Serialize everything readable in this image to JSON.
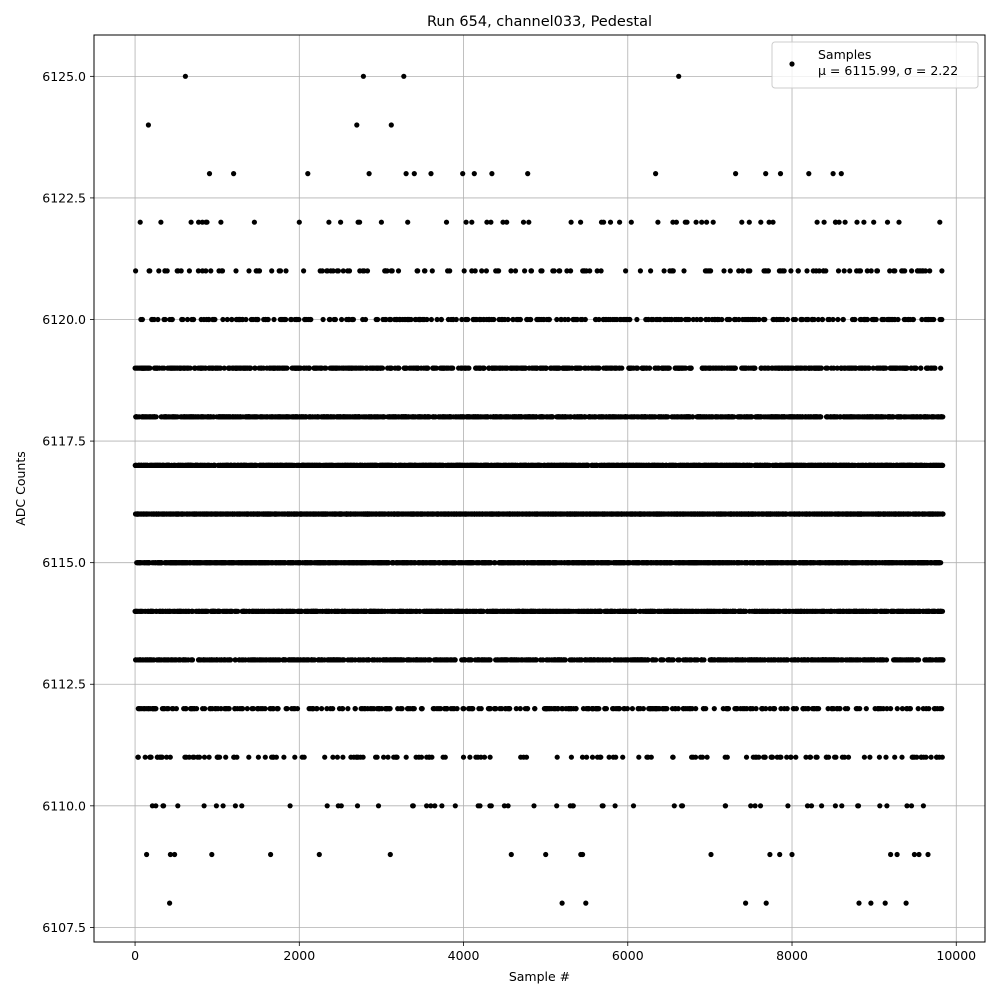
{
  "chart_data": {
    "type": "scatter",
    "title": "Run 654, channel033, Pedestal",
    "xlabel": "Sample #",
    "ylabel": "ADC Counts",
    "xlim": [
      -500,
      10350
    ],
    "ylim": [
      6107.2,
      6125.85
    ],
    "xticks": [
      0,
      2000,
      4000,
      6000,
      8000,
      10000
    ],
    "xtick_labels": [
      "0",
      "2000",
      "4000",
      "6000",
      "8000",
      "10000"
    ],
    "yticks": [
      6107.5,
      6110.0,
      6112.5,
      6115.0,
      6117.5,
      6120.0,
      6122.5,
      6125.0
    ],
    "ytick_labels": [
      "6107.5",
      "6110.0",
      "6112.5",
      "6115.0",
      "6117.5",
      "6120.0",
      "6122.5",
      "6125.0"
    ],
    "grid": true,
    "legend_position": "top-right",
    "marker_color": "#000000",
    "series": [
      {
        "name": "Samples",
        "legend_stats": "μ = 6115.99, σ = 2.22",
        "n_samples": 9840,
        "sampled_x": [
          0,
          20,
          50,
          100,
          200,
          300,
          340,
          400,
          420,
          430,
          500,
          600,
          820,
          900,
          1000,
          1100,
          1300,
          1400,
          1650,
          1900,
          2000,
          2200,
          2340,
          2500,
          2650,
          2700,
          2780,
          2850,
          2950,
          3000,
          3120,
          3150,
          3300,
          3400,
          3500,
          3550,
          3700,
          3900,
          3990,
          4100,
          4200,
          4480,
          4500,
          4730,
          4800,
          5000,
          5100,
          5200,
          5300,
          5450,
          5680,
          5700,
          5900,
          6000,
          6070,
          6200,
          6550,
          6700,
          6900,
          7200,
          7500,
          7620,
          7680,
          7860,
          7950,
          8000,
          8200,
          8360,
          8500,
          8530,
          8600,
          8800,
          8960,
          9000,
          9200,
          9280,
          9400,
          9490,
          9600,
          9700,
          9800,
          9830
        ],
        "sampled_y": [
          6119,
          6115,
          6112,
          6116,
          6117,
          6111,
          6110,
          6113,
          6108,
          6109,
          6114,
          6118,
          6122,
          6120,
          6111,
          6117,
          6110,
          6119,
          6109,
          6115,
          6122,
          6114,
          6110,
          6116,
          6118,
          6124,
          6125,
          6123,
          6113,
          6122,
          6124,
          6111,
          6123,
          6123,
          6117,
          6110,
          6112,
          6110,
          6123,
          6122,
          6110,
          6122,
          6119,
          6122,
          6113,
          6109,
          6115,
          6108,
          6110,
          6109,
          6122,
          6110,
          6122,
          6120,
          6110,
          6114,
          6122,
          6122,
          6122,
          6115,
          6116,
          6122,
          6123,
          6123,
          6110,
          6109,
          6112,
          6110,
          6123,
          6122,
          6123,
          6110,
          6108,
          6113,
          6109,
          6109,
          6110,
          6109,
          6110,
          6118,
          6122,
          6111
        ]
      }
    ]
  }
}
